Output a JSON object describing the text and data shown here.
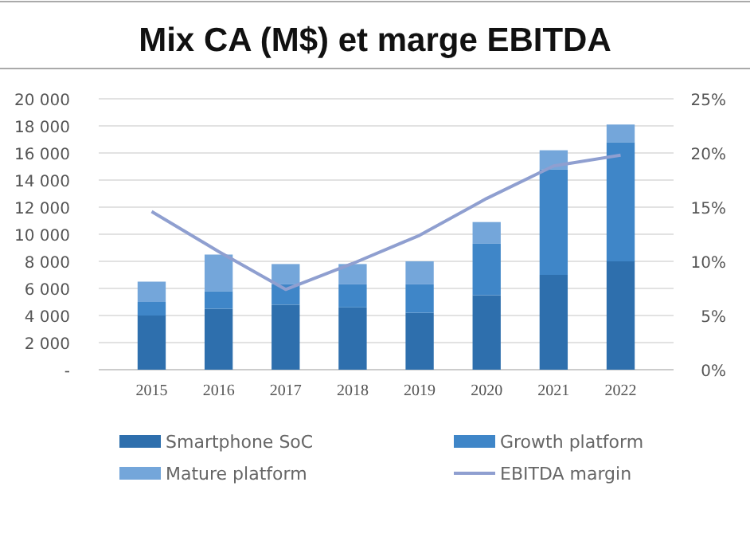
{
  "chart_data": {
    "type": "bar",
    "title": "Mix CA (M$) et marge EBITDA",
    "stacked": true,
    "grid": "y",
    "legend": "bottom",
    "categories": [
      "2015",
      "2016",
      "2017",
      "2018",
      "2019",
      "2020",
      "2021",
      "2022"
    ],
    "series": [
      {
        "name": "Smartphone SoC",
        "color": "#2e6fad",
        "values": [
          4000,
          4500,
          4800,
          4600,
          4200,
          5500,
          7000,
          8000
        ]
      },
      {
        "name": "Growth platform",
        "color": "#3f86c8",
        "values": [
          1000,
          1300,
          1500,
          1700,
          2100,
          3800,
          7800,
          8800
        ]
      },
      {
        "name": "Mature platform",
        "color": "#74a6da",
        "values": [
          1500,
          2700,
          1500,
          1500,
          1700,
          1600,
          1400,
          1300
        ]
      },
      {
        "name": "EBITDA margin",
        "type": "line",
        "axis": "y2",
        "color": "#8f9fd0",
        "values": [
          14.6,
          10.9,
          7.4,
          9.8,
          12.4,
          15.8,
          18.8,
          19.8
        ]
      }
    ],
    "ylim": [
      0,
      20000
    ],
    "yticks": [
      {
        "value": 0,
        "label": "-"
      },
      {
        "value": 2000,
        "label": "2 000"
      },
      {
        "value": 4000,
        "label": "4 000"
      },
      {
        "value": 6000,
        "label": "6 000"
      },
      {
        "value": 8000,
        "label": "8 000"
      },
      {
        "value": 10000,
        "label": "10 000"
      },
      {
        "value": 12000,
        "label": "12 000"
      },
      {
        "value": 14000,
        "label": "14 000"
      },
      {
        "value": 16000,
        "label": "16 000"
      },
      {
        "value": 18000,
        "label": "18 000"
      },
      {
        "value": 20000,
        "label": "20 000"
      }
    ],
    "y2lim": [
      0,
      25
    ],
    "y2ticks": [
      {
        "value": 0,
        "label": "0%"
      },
      {
        "value": 5,
        "label": "5%"
      },
      {
        "value": 10,
        "label": "10%"
      },
      {
        "value": 15,
        "label": "15%"
      },
      {
        "value": 20,
        "label": "20%"
      },
      {
        "value": 25,
        "label": "25%"
      }
    ]
  }
}
